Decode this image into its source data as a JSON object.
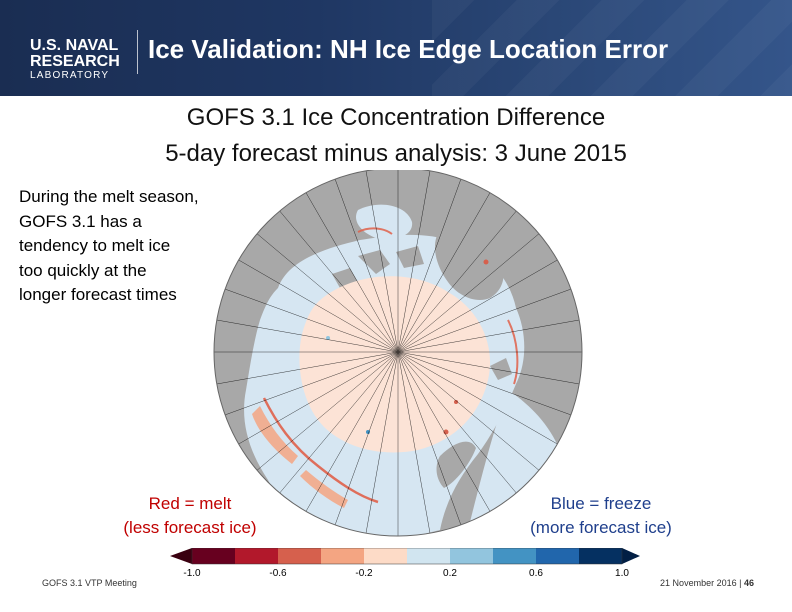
{
  "header": {
    "logo_line1": "U.S. NAVAL",
    "logo_line2": "RESEARCH",
    "logo_line3": "LABORATORY",
    "title": "Ice Validation: NH Ice Edge Location Error"
  },
  "subtitle": {
    "line1": "GOFS 3.1 Ice Concentration Difference",
    "line2": "5-day forecast minus analysis: 3 June 2015"
  },
  "note": {
    "lines": [
      "During the melt season,",
      "GOFS 3.1 has a",
      "tendency to melt ice",
      "too quickly at the",
      "longer forecast times"
    ]
  },
  "legend_labels": {
    "melt_line1": "Red = melt",
    "melt_line2": "(less forecast ice)",
    "freeze_line1": "Blue = freeze",
    "freeze_line2": "(more forecast ice)"
  },
  "colorbar": {
    "colors": [
      "#67001f",
      "#b2182b",
      "#d6604d",
      "#f4a582",
      "#fddbc7",
      "#d1e5f0",
      "#92c5de",
      "#4393c3",
      "#2166ac",
      "#053061"
    ],
    "ticks": [
      "-1.0",
      "-0.6",
      "-0.2",
      "0.2",
      "0.6",
      "1.0"
    ]
  },
  "footer": {
    "left": "GOFS 3.1 VTP Meeting",
    "right_date": "21 November 2016",
    "separator": "|",
    "page": "46"
  },
  "colors": {
    "header_bg": "#1f3763",
    "land": "#a8a8a8",
    "ocean": "#d6e6f2",
    "melt": "#f7b9a0"
  }
}
